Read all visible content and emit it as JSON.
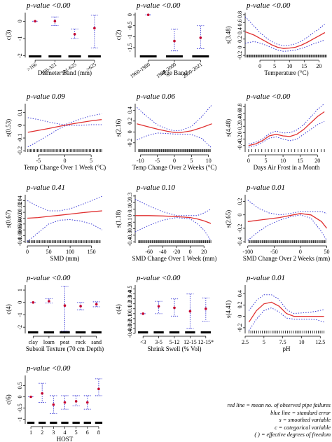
{
  "colors": {
    "fit": "#e03030",
    "se": "#3a3ad6",
    "point": "#c4002e",
    "axis": "#000000",
    "rug": "#000000"
  },
  "legend": {
    "lines": [
      "red line = mean no. of observed pipe failures",
      "blue line = standard error",
      "s = smoothed variable",
      "c = categorical variable",
      "( ) = effective degrees of freedom"
    ]
  },
  "chart_data": [
    {
      "type": "categorical-effect",
      "pvalue": "p-value <0.00",
      "ylabel": "c(3)",
      "xlabel": "Diameter Band (mm)",
      "categories": [
        ">166",
        "166-321",
        "321-625",
        ">625"
      ],
      "rotate_ticks": true,
      "ylim": [
        -2.1,
        0.5
      ],
      "yticks": [
        0,
        -1,
        -2
      ],
      "estimates": [
        0,
        0.0,
        -0.75,
        -0.4
      ],
      "lower": [
        0,
        -0.25,
        -1.0,
        -1.55
      ],
      "upper": [
        0,
        0.25,
        -0.45,
        0.35
      ]
    },
    {
      "type": "categorical-effect",
      "pvalue": "p-value <0.00",
      "ylabel": "c(2)",
      "xlabel": "Age Band",
      "categories": [
        "1960-1980",
        "1980-2000",
        "2000-2021"
      ],
      "rotate_ticks": true,
      "ylim": [
        -1.95,
        0.1
      ],
      "yticks": [
        0,
        -0.5,
        -1.0,
        -1.5
      ],
      "estimates": [
        0,
        -1.2,
        -1.05
      ],
      "lower": [
        0,
        -1.65,
        -1.55
      ],
      "upper": [
        0,
        -0.65,
        -0.5
      ]
    },
    {
      "type": "line",
      "pvalue": "p-value <0.00",
      "ylabel": "s(3.48)",
      "xlabel": "Temperature  (°C)",
      "xlim": [
        -5,
        23
      ],
      "ylim": [
        -0.25,
        0.85
      ],
      "xticks": [
        0,
        5,
        10,
        15,
        20
      ],
      "yticks": [
        -0.2,
        0,
        0.2,
        0.4,
        0.6,
        0.8
      ],
      "x": [
        -5,
        -2,
        0,
        2,
        4,
        6,
        8,
        10,
        12,
        14,
        16,
        18,
        20,
        22
      ],
      "fit": [
        0.38,
        0.3,
        0.22,
        0.14,
        0.06,
        0.0,
        -0.03,
        -0.02,
        0.0,
        0.05,
        0.12,
        0.2,
        0.28,
        0.36
      ],
      "lower": [
        0.1,
        0.14,
        0.1,
        0.05,
        -0.01,
        -0.07,
        -0.1,
        -0.09,
        -0.07,
        -0.03,
        0.02,
        0.08,
        0.13,
        0.18
      ],
      "upper": [
        0.75,
        0.52,
        0.36,
        0.24,
        0.14,
        0.07,
        0.04,
        0.05,
        0.08,
        0.15,
        0.24,
        0.35,
        0.45,
        0.57
      ],
      "rug": {
        "from": -4.5,
        "to": 22.5,
        "count": 80
      }
    },
    {
      "type": "line",
      "pvalue": "p-value 0.09",
      "ylabel": "s(0.53)",
      "xlabel": "Temp Change Over 1 Week  (°C)",
      "xlim": [
        -7.5,
        7.5
      ],
      "ylim": [
        -0.21,
        0.17
      ],
      "xticks": [
        -5,
        0,
        5
      ],
      "yticks": [
        -0.2,
        -0.1,
        0,
        0.1
      ],
      "x": [
        -7,
        -5,
        -3,
        -1,
        0,
        1,
        3,
        5,
        7
      ],
      "fit": [
        -0.055,
        -0.04,
        -0.025,
        -0.008,
        0.0,
        0.008,
        0.022,
        0.035,
        0.045
      ],
      "lower": [
        -0.17,
        -0.125,
        -0.075,
        -0.025,
        -0.005,
        0.0,
        0.0,
        0.005,
        0.005
      ],
      "upper": [
        0.06,
        0.045,
        0.025,
        0.01,
        0.005,
        0.02,
        0.05,
        0.075,
        0.09
      ],
      "rug": {
        "from": -7,
        "to": 7,
        "count": 55
      }
    },
    {
      "type": "line",
      "pvalue": "p-value 0.06",
      "ylabel": "s(2.16)",
      "xlabel": "Temp Change Over 2 Weeks  (°C)",
      "xlim": [
        -11.5,
        11.5
      ],
      "ylim": [
        -0.37,
        0.52
      ],
      "xticks": [
        -10,
        -5,
        0,
        5,
        10
      ],
      "yticks": [
        -0.2,
        0,
        0.2,
        0.4
      ],
      "x": [
        -11,
        -8,
        -5,
        -2,
        0,
        2,
        5,
        8,
        11
      ],
      "fit": [
        0.15,
        0.1,
        0.05,
        0.01,
        -0.01,
        -0.01,
        0.02,
        0.08,
        0.15
      ],
      "lower": [
        -0.15,
        -0.07,
        -0.02,
        -0.03,
        -0.04,
        -0.04,
        -0.05,
        -0.12,
        -0.3
      ],
      "upper": [
        0.45,
        0.28,
        0.13,
        0.05,
        0.02,
        0.03,
        0.1,
        0.28,
        0.5
      ],
      "rug": {
        "from": -10.5,
        "to": 10.5,
        "count": 70
      }
    },
    {
      "type": "line",
      "pvalue": "p-value <0.00",
      "ylabel": "s(4.48)",
      "xlabel": "Days Air Frost in a Month",
      "xlim": [
        -1,
        23
      ],
      "ylim": [
        -0.6,
        0.9
      ],
      "xticks": [
        0,
        5,
        10,
        15,
        20
      ],
      "yticks": [
        -0.4,
        -0.2,
        0,
        0.2,
        0.4,
        0.6,
        0.8
      ],
      "x": [
        0,
        2,
        4,
        6,
        8,
        10,
        12,
        14,
        16,
        18,
        20,
        22
      ],
      "fit": [
        -0.4,
        -0.35,
        -0.25,
        -0.1,
        -0.05,
        -0.1,
        -0.12,
        -0.05,
        0.1,
        0.3,
        0.5,
        0.65
      ],
      "lower": [
        -0.45,
        -0.4,
        -0.3,
        -0.17,
        -0.13,
        -0.2,
        -0.25,
        -0.2,
        -0.05,
        0.1,
        0.25,
        0.35
      ],
      "upper": [
        -0.35,
        -0.3,
        -0.2,
        -0.03,
        0.05,
        -0.01,
        0.0,
        0.08,
        0.25,
        0.48,
        0.72,
        0.9
      ],
      "rug": {
        "from": 0,
        "to": 22,
        "count": 24
      }
    },
    {
      "type": "line",
      "pvalue": "p-value 0.41",
      "ylabel": "s(0.67)",
      "xlabel": "SMD (mm)",
      "xlim": [
        -5,
        180
      ],
      "ylim": [
        -0.105,
        0.06
      ],
      "xticks": [
        0,
        50,
        100,
        150
      ],
      "yticks": [
        -0.1,
        -0.08,
        -0.06,
        -0.04,
        -0.02,
        0,
        0.02,
        0.04
      ],
      "x": [
        0,
        25,
        50,
        75,
        100,
        125,
        150,
        175
      ],
      "fit": [
        -0.02,
        -0.018,
        -0.014,
        -0.01,
        -0.006,
        -0.002,
        0.002,
        0.005
      ],
      "lower": [
        -0.1,
        -0.07,
        -0.04,
        -0.027,
        -0.025,
        -0.03,
        -0.04,
        -0.06
      ],
      "upper": [
        0.04,
        0.02,
        0.005,
        0.005,
        0.012,
        0.025,
        0.04,
        0.055
      ],
      "rug": {
        "from": 0,
        "to": 170,
        "count": 60
      }
    },
    {
      "type": "line",
      "pvalue": "p-value 0.10",
      "ylabel": "s(1.18)",
      "xlabel": "SMD Change Over 1 Week (mm)",
      "xlim": [
        -80,
        34
      ],
      "ylim": [
        -0.42,
        0.32
      ],
      "xticks": [
        -60,
        -40,
        -20,
        0,
        20
      ],
      "yticks": [
        -0.4,
        -0.3,
        -0.2,
        -0.1,
        0,
        0.1,
        0.2,
        0.3
      ],
      "x": [
        -80,
        -60,
        -40,
        -20,
        0,
        10,
        20,
        30
      ],
      "fit": [
        0.0,
        0.0,
        -0.005,
        -0.015,
        -0.03,
        -0.05,
        -0.08,
        -0.12
      ],
      "lower": [
        -0.25,
        -0.15,
        -0.07,
        -0.03,
        -0.05,
        -0.12,
        -0.22,
        -0.38
      ],
      "upper": [
        0.25,
        0.15,
        0.06,
        0.0,
        0.0,
        0.0,
        0.04,
        0.1
      ],
      "rug": {
        "from": -75,
        "to": 30,
        "count": 70
      }
    },
    {
      "type": "line",
      "pvalue": "p-value 0.01",
      "ylabel": "s(2.65)",
      "xlabel": "SMD Change Over 2 Weeks (mm)",
      "xlim": [
        -105,
        52
      ],
      "ylim": [
        -0.42,
        0.3
      ],
      "xticks": [
        -100,
        -50,
        0,
        50
      ],
      "yticks": [
        -0.4,
        -0.2,
        0,
        0.2
      ],
      "x": [
        -100,
        -80,
        -60,
        -40,
        -20,
        0,
        20,
        40,
        50
      ],
      "fit": [
        -0.1,
        -0.08,
        -0.06,
        -0.04,
        -0.01,
        0.02,
        0.0,
        -0.1,
        -0.2
      ],
      "lower": [
        -0.38,
        -0.25,
        -0.15,
        -0.08,
        -0.03,
        0.0,
        -0.05,
        -0.25,
        -0.38
      ],
      "upper": [
        0.22,
        0.1,
        0.03,
        0.0,
        0.02,
        0.05,
        0.05,
        0.05,
        0.02
      ],
      "rug": {
        "from": -98,
        "to": 48,
        "count": 70
      }
    },
    {
      "type": "categorical-effect",
      "pvalue": "p-value <0.00",
      "ylabel": "c(4)",
      "xlabel": "Subsoil Texture (70 cm Depth)",
      "categories": [
        "clay",
        "loam",
        "peat",
        "rock",
        "sand"
      ],
      "rotate_ticks": false,
      "ylim": [
        -2.5,
        1.4
      ],
      "yticks": [
        -2,
        -1,
        0,
        1
      ],
      "estimates": [
        0,
        0.1,
        -0.25,
        -0.3,
        -0.15
      ],
      "lower": [
        0,
        -0.05,
        -2.3,
        -0.6,
        -0.35
      ],
      "upper": [
        0,
        0.3,
        1.3,
        0.0,
        0.05
      ]
    },
    {
      "type": "categorical-effect",
      "pvalue": "p-value <0.00",
      "ylabel": "c(4)",
      "xlabel": "Shrink Swell (% Vol)",
      "categories": [
        "<3",
        "3-5",
        "5-12",
        "12-15",
        "12-15*"
      ],
      "rotate_ticks": false,
      "ylim": [
        -0.4,
        0.58
      ],
      "yticks": [
        -0.4,
        -0.3,
        -0.2,
        -0.1,
        0,
        0.1,
        0.2,
        0.3,
        0.4,
        0.5
      ],
      "estimates": [
        0,
        0.15,
        0.12,
        0.05,
        0.1
      ],
      "lower": [
        0,
        0.0,
        -0.05,
        -0.3,
        -0.15
      ],
      "upper": [
        0,
        0.25,
        0.3,
        0.4,
        0.32
      ]
    },
    {
      "type": "line",
      "pvalue": "p-value 0.01",
      "ylabel": "s(4.41)",
      "xlabel": "pH",
      "xlim": [
        2.5,
        13.5
      ],
      "ylim": [
        -0.3,
        0.55
      ],
      "xticks": [
        2.5,
        5.0,
        7.5,
        10.0,
        12.5
      ],
      "yticks": [
        -0.2,
        0,
        0.2,
        0.4
      ],
      "x": [
        3,
        4,
        5,
        6,
        7,
        8,
        9,
        10,
        11,
        12,
        13
      ],
      "fit": [
        -0.1,
        0.1,
        0.22,
        0.25,
        0.18,
        0.05,
        0.0,
        0.0,
        0.0,
        0.0,
        0.0
      ],
      "lower": [
        -0.25,
        -0.05,
        0.1,
        0.15,
        0.08,
        -0.03,
        -0.05,
        -0.05,
        -0.05,
        -0.06,
        -0.1
      ],
      "upper": [
        0.1,
        0.28,
        0.38,
        0.38,
        0.3,
        0.12,
        0.05,
        0.06,
        0.07,
        0.09,
        0.12
      ],
      "rug": {
        "from": 3,
        "to": 13,
        "count": 40
      }
    },
    {
      "type": "categorical-effect",
      "pvalue": "p-value <0.00",
      "ylabel": "c(6)",
      "xlabel": "HOST",
      "categories": [
        "1",
        "2",
        "3",
        "4",
        "5",
        "6",
        "8"
      ],
      "rotate_ticks": false,
      "ylim": [
        -1.2,
        0.95
      ],
      "yticks": [
        -1.0,
        -0.5,
        0,
        0.5
      ],
      "estimates": [
        0,
        0.15,
        -0.35,
        -0.25,
        -0.2,
        -0.25,
        0.35
      ],
      "lower": [
        0,
        -0.25,
        -0.75,
        -0.55,
        -0.4,
        -0.55,
        0.05
      ],
      "upper": [
        0,
        0.6,
        0.05,
        0.05,
        0.05,
        0.05,
        0.8
      ]
    }
  ]
}
